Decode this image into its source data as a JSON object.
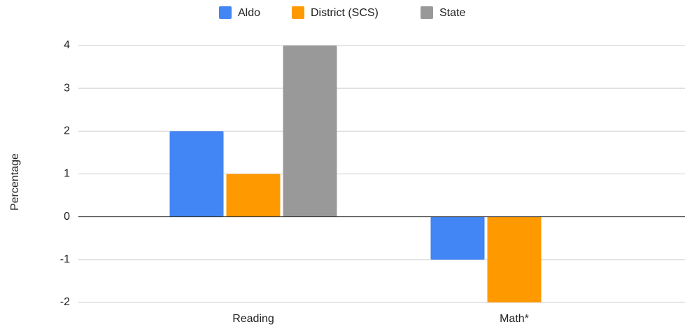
{
  "chart_data": {
    "type": "bar",
    "categories": [
      "Reading",
      "Math*"
    ],
    "series": [
      {
        "name": "Aldo",
        "color": "#4285f4",
        "values": [
          2,
          -1
        ]
      },
      {
        "name": "District (SCS)",
        "color": "#ff9900",
        "values": [
          1,
          -2
        ]
      },
      {
        "name": "State",
        "color": "#999999",
        "values": [
          4,
          0
        ]
      }
    ],
    "y_label": "Percentage",
    "ylim": [
      -2,
      4
    ],
    "yticks": [
      -2,
      -1,
      0,
      1,
      2,
      3,
      4
    ],
    "grid": true,
    "legend": "top"
  }
}
